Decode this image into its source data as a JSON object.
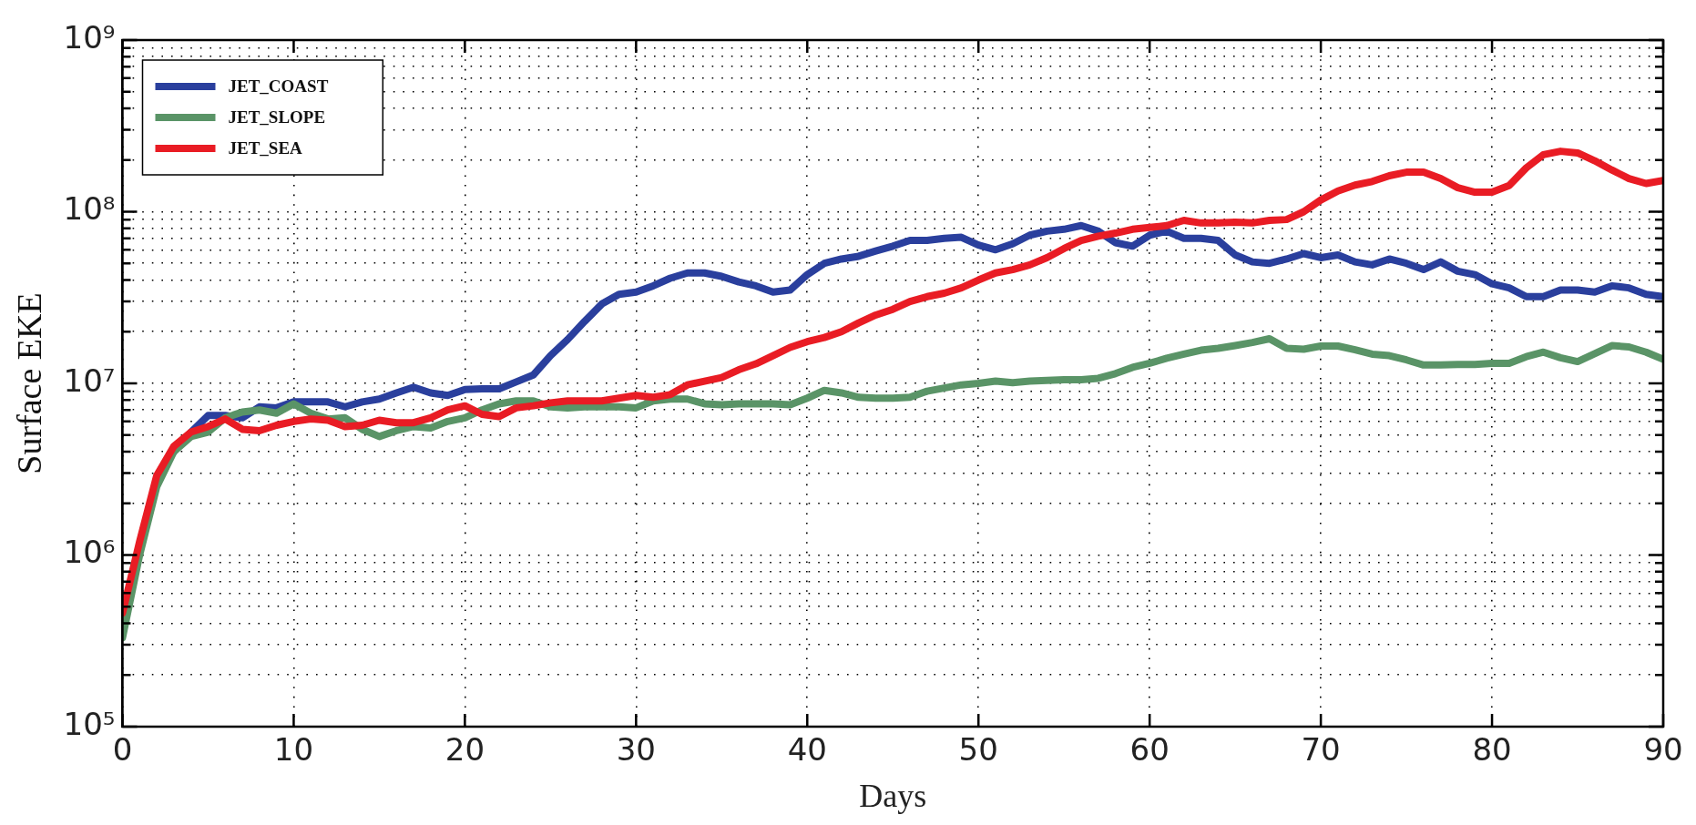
{
  "chart_data": {
    "type": "line",
    "xlabel": "Days",
    "ylabel": "Surface EKE",
    "log": "y",
    "grid": true,
    "legend": "top left",
    "marker": "none",
    "line_style": "solid",
    "x": [
      0,
      1,
      2,
      3,
      4,
      5,
      6,
      7,
      8,
      9,
      10,
      11,
      12,
      13,
      14,
      15,
      16,
      17,
      18,
      19,
      20,
      21,
      22,
      23,
      24,
      25,
      26,
      27,
      28,
      29,
      30,
      31,
      32,
      33,
      34,
      35,
      36,
      37,
      38,
      39,
      40,
      41,
      42,
      43,
      44,
      45,
      46,
      47,
      48,
      49,
      50,
      51,
      52,
      53,
      54,
      55,
      56,
      57,
      58,
      59,
      60,
      61,
      62,
      63,
      64,
      65,
      66,
      67,
      68,
      69,
      70,
      71,
      72,
      73,
      74,
      75,
      76,
      77,
      78,
      79,
      80,
      81,
      82,
      83,
      84,
      85,
      86,
      87,
      88,
      89,
      90
    ],
    "xlim": [
      0,
      90
    ],
    "xticks": [
      0,
      10,
      20,
      30,
      40,
      50,
      60,
      70,
      80,
      90
    ],
    "ylim": [
      100000,
      1000000000
    ],
    "yticks": [
      {
        "value": 100000,
        "label": "10⁵"
      },
      {
        "value": 200000,
        "label": null
      },
      {
        "value": 300000,
        "label": null
      },
      {
        "value": 400000,
        "label": null
      },
      {
        "value": 500000,
        "label": null
      },
      {
        "value": 600000,
        "label": null
      },
      {
        "value": 700000,
        "label": null
      },
      {
        "value": 800000,
        "label": null
      },
      {
        "value": 900000,
        "label": null
      },
      {
        "value": 1000000,
        "label": "10⁶"
      },
      {
        "value": 2000000,
        "label": null
      },
      {
        "value": 3000000,
        "label": null
      },
      {
        "value": 4000000,
        "label": null
      },
      {
        "value": 5000000,
        "label": null
      },
      {
        "value": 6000000,
        "label": null
      },
      {
        "value": 7000000,
        "label": null
      },
      {
        "value": 8000000,
        "label": null
      },
      {
        "value": 9000000,
        "label": null
      },
      {
        "value": 10000000,
        "label": "10⁷"
      },
      {
        "value": 20000000,
        "label": null
      },
      {
        "value": 30000000,
        "label": null
      },
      {
        "value": 40000000,
        "label": null
      },
      {
        "value": 50000000,
        "label": null
      },
      {
        "value": 60000000,
        "label": null
      },
      {
        "value": 70000000,
        "label": null
      },
      {
        "value": 80000000,
        "label": null
      },
      {
        "value": 90000000,
        "label": null
      },
      {
        "value": 100000000,
        "label": "10⁸"
      },
      {
        "value": 200000000,
        "label": null
      },
      {
        "value": 300000000,
        "label": null
      },
      {
        "value": 400000000,
        "label": null
      },
      {
        "value": 500000000,
        "label": null
      },
      {
        "value": 600000000,
        "label": null
      },
      {
        "value": 700000000,
        "label": null
      },
      {
        "value": 800000000,
        "label": null
      },
      {
        "value": 900000000,
        "label": null
      },
      {
        "value": 1000000000,
        "label": "10⁹"
      }
    ],
    "series": [
      {
        "name": "JET_COAST",
        "color": "#2a3f9d",
        "values": [
          null,
          null,
          null,
          4000000,
          5200000,
          6500000,
          6500000,
          6300000,
          7300000,
          7200000,
          7800000,
          7800000,
          7800000,
          7300000,
          7800000,
          8100000,
          8800000,
          9500000,
          8800000,
          8500000,
          9200000,
          9300000,
          9300000,
          10200000,
          11200000,
          14500000,
          18000000,
          23000000,
          29000000,
          33000000,
          34000000,
          37000000,
          41000000,
          44000000,
          44000000,
          42000000,
          39000000,
          37000000,
          34000000,
          35000000,
          43000000,
          50000000,
          53000000,
          55000000,
          59000000,
          63000000,
          68000000,
          68000000,
          70000000,
          71000000,
          64000000,
          60000000,
          65000000,
          73000000,
          77000000,
          79000000,
          83000000,
          77000000,
          66000000,
          63000000,
          73000000,
          77000000,
          70000000,
          70000000,
          68000000,
          56000000,
          51000000,
          50000000,
          53000000,
          57000000,
          54000000,
          56000000,
          51000000,
          49000000,
          53000000,
          50000000,
          46000000,
          51000000,
          45000000,
          43000000,
          38000000,
          36000000,
          32000000,
          32000000,
          35000000,
          35000000,
          34000000,
          37000000,
          36000000,
          33000000,
          32000000
        ]
      },
      {
        "name": "JET_SLOPE",
        "color": "#5a9467",
        "values": [
          330000,
          1000000,
          2500000,
          4000000,
          4900000,
          5200000,
          6300000,
          6800000,
          7000000,
          6700000,
          7600000,
          6700000,
          6200000,
          6300000,
          5400000,
          4900000,
          5300000,
          5600000,
          5500000,
          6000000,
          6300000,
          7000000,
          7600000,
          7900000,
          7900000,
          7300000,
          7200000,
          7300000,
          7300000,
          7300000,
          7200000,
          7900000,
          8100000,
          8100000,
          7600000,
          7500000,
          7600000,
          7600000,
          7600000,
          7500000,
          8200000,
          9100000,
          8800000,
          8300000,
          8200000,
          8200000,
          8300000,
          9000000,
          9400000,
          9800000,
          10000000,
          10300000,
          10100000,
          10300000,
          10400000,
          10500000,
          10500000,
          10700000,
          11400000,
          12400000,
          13100000,
          14000000,
          14800000,
          15600000,
          16000000,
          16600000,
          17300000,
          18200000,
          16000000,
          15800000,
          16500000,
          16500000,
          15700000,
          14800000,
          14500000,
          13700000,
          12800000,
          12800000,
          12900000,
          12900000,
          13100000,
          13100000,
          14300000,
          15200000,
          14100000,
          13400000,
          14900000,
          16600000,
          16300000,
          15200000,
          13800000
        ]
      },
      {
        "name": "JET_SEA",
        "color": "#e91c24",
        "values": [
          460000,
          1200000,
          2900000,
          4300000,
          5200000,
          5600000,
          6200000,
          5400000,
          5300000,
          5700000,
          6000000,
          6200000,
          6100000,
          5600000,
          5700000,
          6100000,
          5900000,
          5900000,
          6300000,
          7000000,
          7400000,
          6600000,
          6400000,
          7200000,
          7400000,
          7700000,
          7900000,
          7900000,
          7900000,
          8200000,
          8500000,
          8300000,
          8600000,
          9800000,
          10300000,
          10800000,
          12000000,
          13000000,
          14500000,
          16200000,
          17500000,
          18500000,
          20000000,
          22500000,
          25000000,
          27000000,
          30000000,
          32000000,
          33500000,
          36000000,
          40000000,
          44000000,
          46000000,
          49000000,
          54000000,
          61000000,
          68000000,
          72000000,
          75000000,
          79000000,
          81000000,
          83000000,
          89000000,
          86000000,
          86000000,
          87000000,
          86000000,
          89000000,
          90000000,
          100000000,
          117000000,
          132000000,
          143000000,
          150000000,
          162000000,
          170000000,
          170000000,
          156000000,
          138000000,
          130000000,
          130000000,
          142000000,
          180000000,
          215000000,
          225000000,
          220000000,
          198000000,
          175000000,
          156000000,
          146000000,
          152000000
        ]
      }
    ]
  }
}
